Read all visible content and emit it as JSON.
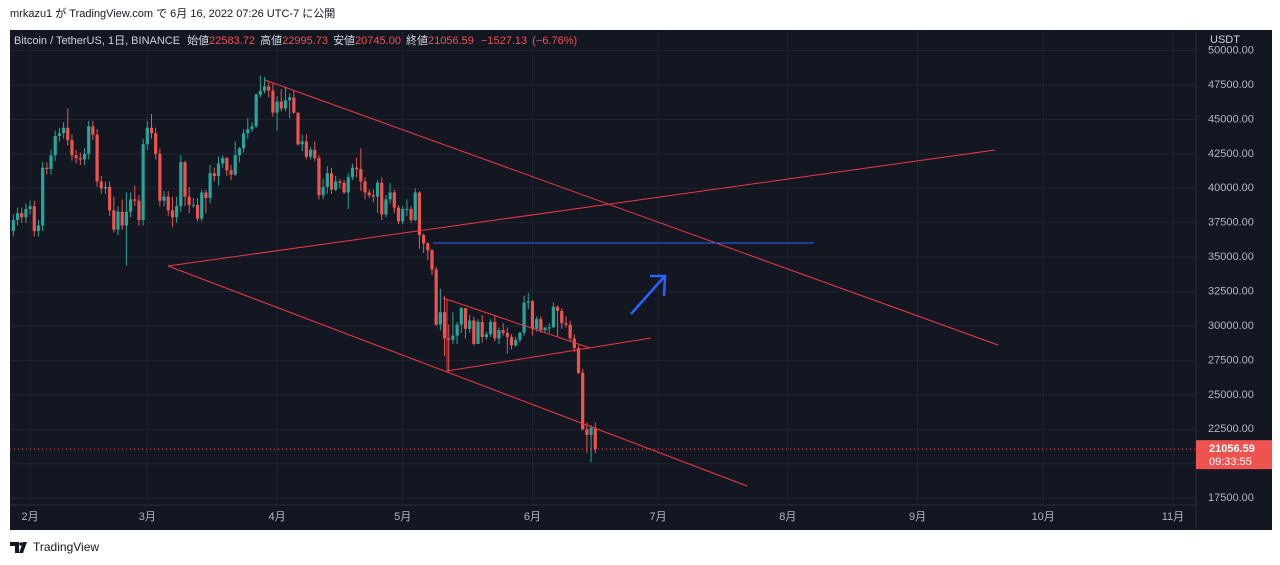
{
  "chart_data": {
    "type": "candlestick",
    "publisher_line": "mrkazu1 が TradingView.com で 6月 16, 2022 07:26 UTC-7 に公開",
    "ohlc_legend": {
      "symbol": "Bitcoin / TetherUS, 1日, BINANCE",
      "open_label": "始値",
      "open": "22583.72",
      "high_label": "高値",
      "high": "22995.73",
      "low_label": "安値",
      "low": "20745.00",
      "close_label": "終値",
      "close": "21056.59",
      "change": "−1527.13",
      "change_pct": "(−6.76%)"
    },
    "currency": "USDT",
    "countdown": "09:33:55",
    "footer": "TradingView",
    "up_color": "#26a69a",
    "down_color": "#ef5350",
    "grid": true,
    "xlim": [
      -0.3,
      283
    ],
    "xticks": [
      {
        "value": 4,
        "label": "2月"
      },
      {
        "value": 32,
        "label": "3月"
      },
      {
        "value": 63,
        "label": "4月"
      },
      {
        "value": 93,
        "label": "5月"
      },
      {
        "value": 124,
        "label": "6月"
      },
      {
        "value": 154,
        "label": "7月"
      },
      {
        "value": 185,
        "label": "8月"
      },
      {
        "value": 216,
        "label": "9月"
      },
      {
        "value": 246,
        "label": "10月"
      },
      {
        "value": 277,
        "label": "11月"
      }
    ],
    "ylim": [
      17000,
      51500
    ],
    "yticks": [
      {
        "value": 17500,
        "label": "17500.00"
      },
      {
        "value": 20000,
        "label": "20000.00"
      },
      {
        "value": 22500,
        "label": "22500.00"
      },
      {
        "value": 25000,
        "label": "25000.00"
      },
      {
        "value": 27500,
        "label": "27500.00"
      },
      {
        "value": 30000,
        "label": "30000.00"
      },
      {
        "value": 32500,
        "label": "32500.00"
      },
      {
        "value": 35000,
        "label": "35000.00"
      },
      {
        "value": 37500,
        "label": "37500.00"
      },
      {
        "value": 40000,
        "label": "40000.00"
      },
      {
        "value": 42500,
        "label": "42500.00"
      },
      {
        "value": 45000,
        "label": "45000.00"
      },
      {
        "value": 47500,
        "label": "47500.00"
      },
      {
        "value": 50000,
        "label": "50000.00"
      }
    ],
    "open": [
      36900,
      37700,
      38200,
      37900,
      38500,
      38700,
      36900,
      37300,
      41500,
      41400,
      42400,
      43800,
      44000,
      44400,
      43500,
      42400,
      42200,
      42100,
      42500,
      44500,
      43900,
      40500,
      40000,
      40100,
      38400,
      37000,
      38300,
      37300,
      38300,
      39200,
      39100,
      37700,
      43200,
      44400,
      44000,
      42500,
      39100,
      39400,
      38400,
      37900,
      38700,
      41900,
      39400,
      38800,
      38800,
      37800,
      39700,
      39300,
      41100,
      40900,
      41800,
      42200,
      41300,
      41000,
      42400,
      42900,
      44000,
      44300,
      44500,
      46800,
      47100,
      47400,
      47100,
      45500,
      46300,
      45800,
      46400,
      46600,
      45500,
      43200,
      43400,
      42300,
      42800,
      42200,
      39500,
      40100,
      41100,
      39900,
      40500,
      40400,
      39700,
      40800,
      41500,
      41400,
      40500,
      39700,
      39500,
      39400,
      40400,
      38100,
      39200,
      39700,
      38600,
      37600,
      38500,
      38500,
      37700,
      39700,
      36600,
      36000,
      35500,
      34100,
      30100,
      31000,
      29100,
      29000,
      29300,
      30100,
      31300,
      29800,
      30400,
      28700,
      30300,
      29200,
      29400,
      30300,
      29100,
      29700,
      29500,
      29200,
      28600,
      29000,
      29500,
      31700,
      31800,
      29800,
      30500,
      29700,
      29900,
      29900,
      31400,
      31100,
      30200,
      30100,
      29100,
      28400,
      26600,
      22500,
      22100,
      22583.72
    ],
    "high": [
      38100,
      38600,
      38600,
      38900,
      39100,
      39100,
      37700,
      41900,
      41900,
      42800,
      44200,
      44400,
      44800,
      45800,
      43900,
      42800,
      42600,
      42900,
      44900,
      44900,
      44300,
      40900,
      40500,
      40500,
      39400,
      38700,
      39200,
      39700,
      39700,
      40200,
      39500,
      43600,
      44900,
      45400,
      44400,
      42900,
      39800,
      39800,
      39400,
      39400,
      42400,
      42000,
      40100,
      39300,
      39300,
      39900,
      39900,
      41700,
      41500,
      42300,
      42400,
      42300,
      41700,
      43400,
      43000,
      44300,
      45100,
      44800,
      46900,
      48200,
      48100,
      47700,
      47600,
      46700,
      47200,
      47400,
      46900,
      47100,
      45500,
      43900,
      43900,
      43000,
      43400,
      42400,
      40700,
      41600,
      41500,
      40900,
      40700,
      40600,
      41100,
      41800,
      42200,
      42900,
      40800,
      39900,
      39900,
      40600,
      40800,
      39500,
      40400,
      39900,
      38800,
      38700,
      39200,
      38700,
      40000,
      39800,
      36700,
      36100,
      35600,
      34300,
      32700,
      32200,
      30100,
      31000,
      30300,
      31400,
      31300,
      30800,
      30700,
      30500,
      30800,
      29600,
      30500,
      30700,
      29900,
      30200,
      29900,
      29400,
      29200,
      29600,
      32200,
      32400,
      31900,
      30700,
      30700,
      29900,
      30200,
      31700,
      31500,
      31300,
      30700,
      30400,
      29400,
      28600,
      26900,
      23000,
      22800,
      22995.73
    ],
    "low": [
      36500,
      37300,
      37500,
      37500,
      38100,
      36500,
      36500,
      36900,
      41000,
      41000,
      42000,
      43400,
      43600,
      43100,
      42000,
      41800,
      41700,
      41700,
      42100,
      43500,
      40100,
      39600,
      39600,
      38000,
      36800,
      36600,
      37000,
      34400,
      37900,
      38700,
      37300,
      37300,
      42800,
      43600,
      42100,
      38700,
      38700,
      38000,
      37200,
      37500,
      38300,
      38700,
      38200,
      38600,
      37600,
      37600,
      38200,
      38900,
      40500,
      40200,
      41500,
      40900,
      40600,
      40900,
      41900,
      42600,
      43600,
      44100,
      44400,
      46600,
      46900,
      46600,
      45200,
      44200,
      45600,
      45600,
      45100,
      45400,
      43100,
      42700,
      42100,
      42100,
      42000,
      39200,
      39200,
      39600,
      39600,
      39800,
      40000,
      39600,
      38500,
      40600,
      40800,
      39800,
      39200,
      39300,
      39000,
      38200,
      37700,
      37900,
      38900,
      38200,
      37400,
      37400,
      38000,
      37500,
      37600,
      35600,
      35300,
      34800,
      33700,
      30000,
      29700,
      27800,
      26700,
      28700,
      28700,
      29500,
      29100,
      29500,
      28600,
      28700,
      28800,
      29000,
      29200,
      28900,
      28700,
      29300,
      28000,
      28300,
      28500,
      28800,
      29300,
      31200,
      29300,
      29600,
      29500,
      29500,
      29500,
      29900,
      29200,
      29800,
      29900,
      28900,
      28100,
      26500,
      22400,
      20800,
      20100,
      20745
    ],
    "close": [
      37700,
      38200,
      37900,
      38500,
      38700,
      36900,
      37300,
      41500,
      41400,
      42400,
      43800,
      44000,
      44400,
      43500,
      42400,
      42200,
      42100,
      42500,
      44500,
      43900,
      40500,
      40000,
      40100,
      38400,
      37000,
      38300,
      37300,
      38300,
      39200,
      39100,
      37700,
      43200,
      44400,
      44000,
      42500,
      39100,
      39400,
      38400,
      37900,
      38700,
      41900,
      39400,
      38800,
      38800,
      37800,
      39700,
      39300,
      41100,
      40900,
      41800,
      42200,
      41300,
      41000,
      42400,
      42900,
      44000,
      44300,
      44500,
      46800,
      47100,
      47400,
      47100,
      45500,
      46300,
      45800,
      46400,
      46600,
      45500,
      43200,
      43400,
      42300,
      42800,
      42200,
      39500,
      40100,
      41100,
      39900,
      40500,
      40400,
      39700,
      40800,
      41500,
      41400,
      40500,
      39700,
      39500,
      39400,
      40400,
      38100,
      39200,
      39700,
      38600,
      37600,
      38500,
      38500,
      37700,
      39700,
      36600,
      36000,
      35500,
      34100,
      30100,
      31000,
      29100,
      29000,
      29300,
      30100,
      31300,
      29800,
      30400,
      28700,
      30300,
      29200,
      29400,
      30300,
      29100,
      29700,
      29500,
      29200,
      28600,
      29000,
      29500,
      31700,
      31800,
      29800,
      30500,
      29700,
      29900,
      29900,
      31400,
      31100,
      30200,
      30100,
      29100,
      28400,
      26600,
      22500,
      22100,
      22600,
      21056.59
    ]
  }
}
